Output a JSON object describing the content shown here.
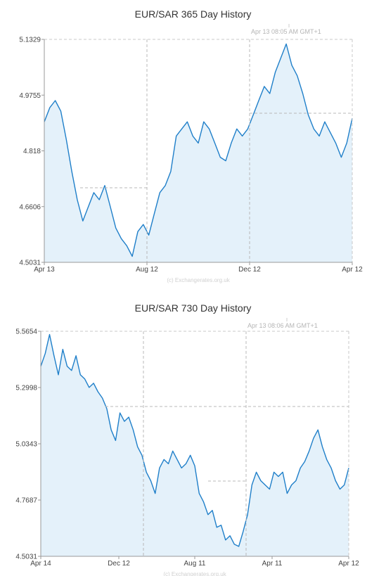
{
  "chart_data": [
    {
      "type": "area",
      "title": "EUR/SAR  365 Day History",
      "timestamp": "Apr 13  08:05 AM GMT+1",
      "credit": "(c) Exchangerates.org.uk",
      "x_ticks": [
        "Apr 13",
        "Aug 12",
        "Dec 12",
        "Apr 12"
      ],
      "y_ticks": [
        "5.1329",
        "4.9755",
        "4.818",
        "4.6606",
        "4.5031"
      ],
      "ylim": [
        4.5031,
        5.1329
      ],
      "grid": true,
      "fill_color": "#e4f1fa",
      "line_color": "#1f7fc9",
      "series": [
        {
          "values": [
            4.9,
            4.94,
            4.96,
            4.93,
            4.85,
            4.76,
            4.68,
            4.62,
            4.66,
            4.7,
            4.68,
            4.72,
            4.66,
            4.6,
            4.57,
            4.55,
            4.52,
            4.59,
            4.61,
            4.58,
            4.64,
            4.7,
            4.72,
            4.76,
            4.86,
            4.88,
            4.9,
            4.86,
            4.84,
            4.9,
            4.88,
            4.84,
            4.8,
            4.79,
            4.84,
            4.88,
            4.86,
            4.88,
            4.92,
            4.96,
            5.0,
            4.98,
            5.04,
            5.08,
            5.12,
            5.06,
            5.03,
            4.98,
            4.92,
            4.88,
            4.86,
            4.9,
            4.87,
            4.84,
            4.8,
            4.84,
            4.91
          ]
        }
      ]
    },
    {
      "type": "area",
      "title": "EUR/SAR  730 Day History",
      "timestamp": "Apr 13  08:06 AM GMT+1",
      "credit": "(c) Exchangerates.org.uk",
      "x_ticks": [
        "Apr 14",
        "Dec 12",
        "Aug 11",
        "Apr 11",
        "Apr 12"
      ],
      "y_ticks": [
        "5.5654",
        "5.2998",
        "5.0343",
        "4.7687",
        "4.5031"
      ],
      "ylim": [
        4.5031,
        5.5654
      ],
      "grid": true,
      "fill_color": "#e4f1fa",
      "line_color": "#1f7fc9",
      "series": [
        {
          "values": [
            5.4,
            5.46,
            5.55,
            5.45,
            5.36,
            5.48,
            5.4,
            5.38,
            5.45,
            5.36,
            5.34,
            5.3,
            5.32,
            5.28,
            5.25,
            5.2,
            5.1,
            5.05,
            5.18,
            5.14,
            5.16,
            5.1,
            5.02,
            4.98,
            4.9,
            4.86,
            4.8,
            4.92,
            4.96,
            4.94,
            5.0,
            4.96,
            4.92,
            4.94,
            4.98,
            4.93,
            4.8,
            4.76,
            4.7,
            4.72,
            4.64,
            4.65,
            4.58,
            4.6,
            4.56,
            4.55,
            4.62,
            4.7,
            4.84,
            4.9,
            4.86,
            4.84,
            4.82,
            4.9,
            4.88,
            4.9,
            4.8,
            4.84,
            4.86,
            4.92,
            4.95,
            5.0,
            5.06,
            5.1,
            5.02,
            4.96,
            4.92,
            4.86,
            4.82,
            4.84,
            4.92
          ]
        }
      ]
    }
  ]
}
